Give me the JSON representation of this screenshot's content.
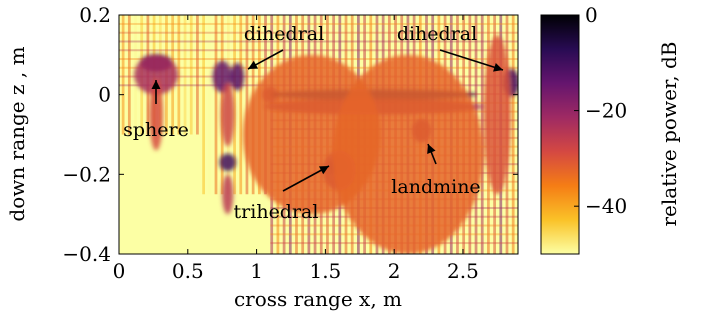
{
  "chart_data": {
    "type": "heatmap",
    "xlabel": "cross range x, m",
    "ylabel": "down range z , m",
    "xlim": [
      0,
      2.9
    ],
    "ylim": [
      -0.4,
      0.2
    ],
    "xticks": [
      0,
      0.5,
      1,
      1.5,
      2,
      2.5
    ],
    "xtick_labels": [
      "0",
      "0.5",
      "1",
      "1.5",
      "2",
      "2.5"
    ],
    "yticks": [
      0.2,
      0,
      -0.2,
      -0.4
    ],
    "ytick_labels": [
      "0.2",
      "0",
      "−0.2",
      "−0.4"
    ],
    "colorbar": {
      "label": "relative power, dB",
      "range": [
        -50,
        0
      ],
      "ticks": [
        0,
        -20,
        -40
      ],
      "tick_labels": [
        "0",
        "−20",
        "−40"
      ],
      "colormap": [
        "#fcffa4",
        "#fac228",
        "#f57d15",
        "#d44842",
        "#9f2a63",
        "#65156e",
        "#280b53",
        "#000004"
      ]
    },
    "annotations": [
      {
        "text": "sphere",
        "target": [
          0.27,
          0.06
        ]
      },
      {
        "text": "dihedral",
        "target": [
          0.93,
          0.055
        ]
      },
      {
        "text": "dihedral",
        "target": [
          2.88,
          0.055
        ]
      },
      {
        "text": "trihedral",
        "target": [
          1.56,
          -0.18
        ]
      },
      {
        "text": "landmine",
        "target": [
          2.25,
          -0.12
        ]
      }
    ]
  }
}
